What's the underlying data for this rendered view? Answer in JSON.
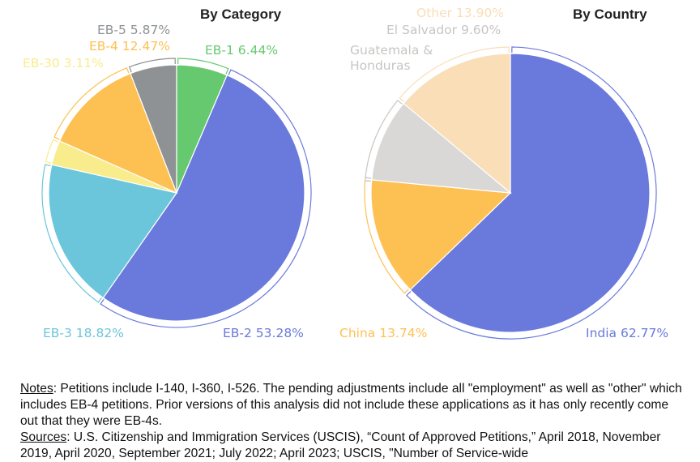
{
  "chart_data": [
    {
      "type": "pie",
      "title": "By Category",
      "slices": [
        {
          "label": "EB-1",
          "value": 6.44,
          "display": "EB-1 6.44%",
          "color": "#66c96f"
        },
        {
          "label": "EB-2",
          "value": 53.28,
          "display": "EB-2 53.28%",
          "color": "#6a79dc"
        },
        {
          "label": "EB-3",
          "value": 18.82,
          "display": "EB-3 18.82%",
          "color": "#6cc6db"
        },
        {
          "label": "EB-30",
          "value": 3.11,
          "display": "EB-30 3.11%",
          "color": "#f9ec8c"
        },
        {
          "label": "EB-4",
          "value": 12.47,
          "display": "EB-4 12.47%",
          "color": "#fdc153"
        },
        {
          "label": "EB-5",
          "value": 5.87,
          "display": "EB-5 5.87%",
          "color": "#8e9294"
        }
      ]
    },
    {
      "type": "pie",
      "title": "By Country",
      "slices": [
        {
          "label": "India",
          "value": 62.77,
          "display": "India 62.77%",
          "color": "#6a79dc"
        },
        {
          "label": "China",
          "value": 13.74,
          "display": "China 13.74%",
          "color": "#fdc153"
        },
        {
          "label": "Guatemala & Honduras",
          "value": null,
          "display": "Guatemala & Honduras",
          "color": "#d9d8d7"
        },
        {
          "label": "El Salvador",
          "value": 9.6,
          "display": "El Salvador 9.60%",
          "color": "#d9d8d7"
        },
        {
          "label": "Other",
          "value": 13.9,
          "display": "Other 13.90%",
          "color": "#f9deb8"
        }
      ]
    }
  ],
  "notes": {
    "notes_lead": "Notes",
    "notes_text": ": Petitions include I-140, I-360, I-526. The pending adjustments include all \"employment\" as well as \"other\" which includes EB-4 petitions. Prior versions of this analysis did not include these applications as it has only recently come out that they were EB-4s.",
    "sources_lead": "Sources",
    "sources_text": ": U.S. Citizenship and Immigration Services (USCIS), “Count of Approved Petitions,” April 2018, November 2019, April 2020, September 2021; July 2022; April 2023; USCIS, \"Number of Service-wide"
  }
}
